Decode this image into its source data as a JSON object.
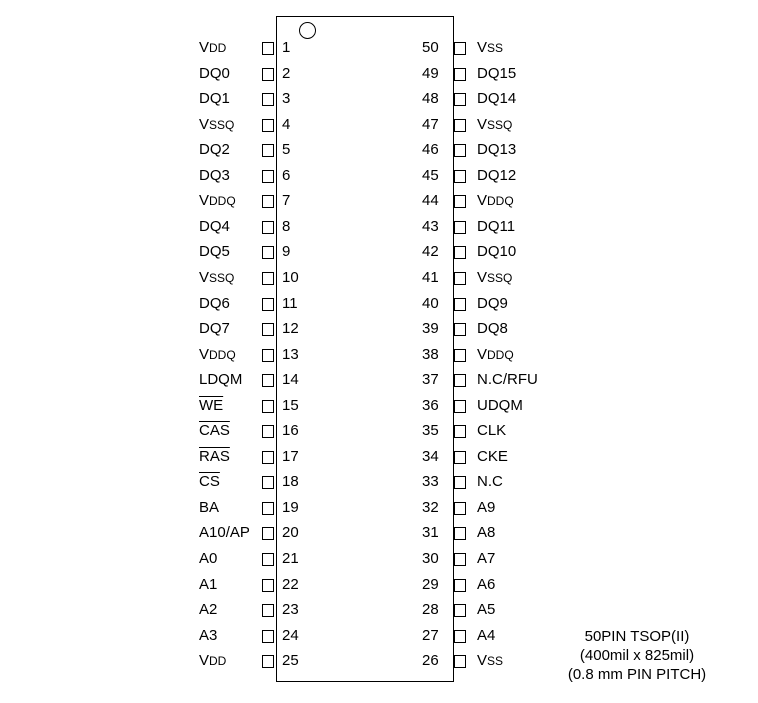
{
  "pins_left": [
    {
      "num": "1",
      "name": [
        {
          "t": "V"
        },
        {
          "t": "DD",
          "sub": true
        }
      ]
    },
    {
      "num": "2",
      "name": [
        {
          "t": "DQ0"
        }
      ]
    },
    {
      "num": "3",
      "name": [
        {
          "t": "DQ1"
        }
      ]
    },
    {
      "num": "4",
      "name": [
        {
          "t": "V"
        },
        {
          "t": "SSQ",
          "sub": true
        }
      ]
    },
    {
      "num": "5",
      "name": [
        {
          "t": "DQ2"
        }
      ]
    },
    {
      "num": "6",
      "name": [
        {
          "t": "DQ3"
        }
      ]
    },
    {
      "num": "7",
      "name": [
        {
          "t": "V"
        },
        {
          "t": "DDQ",
          "sub": true
        }
      ]
    },
    {
      "num": "8",
      "name": [
        {
          "t": "DQ4"
        }
      ]
    },
    {
      "num": "9",
      "name": [
        {
          "t": "DQ5"
        }
      ]
    },
    {
      "num": "10",
      "name": [
        {
          "t": "V"
        },
        {
          "t": "SSQ",
          "sub": true
        }
      ]
    },
    {
      "num": "11",
      "name": [
        {
          "t": "DQ6"
        }
      ]
    },
    {
      "num": "12",
      "name": [
        {
          "t": "DQ7"
        }
      ]
    },
    {
      "num": "13",
      "name": [
        {
          "t": "V"
        },
        {
          "t": "DDQ",
          "sub": true
        }
      ]
    },
    {
      "num": "14",
      "name": [
        {
          "t": "LDQM"
        }
      ]
    },
    {
      "num": "15",
      "name": [
        {
          "t": "WE",
          "bar": true
        }
      ]
    },
    {
      "num": "16",
      "name": [
        {
          "t": "CAS",
          "bar": true
        }
      ]
    },
    {
      "num": "17",
      "name": [
        {
          "t": "RAS",
          "bar": true
        }
      ]
    },
    {
      "num": "18",
      "name": [
        {
          "t": "CS",
          "bar": true
        }
      ]
    },
    {
      "num": "19",
      "name": [
        {
          "t": "BA"
        }
      ]
    },
    {
      "num": "20",
      "name": [
        {
          "t": "A10/AP"
        }
      ]
    },
    {
      "num": "21",
      "name": [
        {
          "t": "A0"
        }
      ]
    },
    {
      "num": "22",
      "name": [
        {
          "t": "A1"
        }
      ]
    },
    {
      "num": "23",
      "name": [
        {
          "t": "A2"
        }
      ]
    },
    {
      "num": "24",
      "name": [
        {
          "t": "A3"
        }
      ]
    },
    {
      "num": "25",
      "name": [
        {
          "t": "V"
        },
        {
          "t": "DD",
          "sub": true
        }
      ]
    }
  ],
  "pins_right": [
    {
      "num": "50",
      "name": [
        {
          "t": "V"
        },
        {
          "t": "SS",
          "sub": true
        }
      ]
    },
    {
      "num": "49",
      "name": [
        {
          "t": "DQ15"
        }
      ]
    },
    {
      "num": "48",
      "name": [
        {
          "t": "DQ14"
        }
      ]
    },
    {
      "num": "47",
      "name": [
        {
          "t": "V"
        },
        {
          "t": "SSQ",
          "sub": true
        }
      ]
    },
    {
      "num": "46",
      "name": [
        {
          "t": "DQ13"
        }
      ]
    },
    {
      "num": "45",
      "name": [
        {
          "t": "DQ12"
        }
      ]
    },
    {
      "num": "44",
      "name": [
        {
          "t": "V"
        },
        {
          "t": "DDQ",
          "sub": true
        }
      ]
    },
    {
      "num": "43",
      "name": [
        {
          "t": "DQ11"
        }
      ]
    },
    {
      "num": "42",
      "name": [
        {
          "t": "DQ10"
        }
      ]
    },
    {
      "num": "41",
      "name": [
        {
          "t": "V"
        },
        {
          "t": "SSQ",
          "sub": true
        }
      ]
    },
    {
      "num": "40",
      "name": [
        {
          "t": "DQ9"
        }
      ]
    },
    {
      "num": "39",
      "name": [
        {
          "t": "DQ8"
        }
      ]
    },
    {
      "num": "38",
      "name": [
        {
          "t": "V"
        },
        {
          "t": "DDQ",
          "sub": true
        }
      ]
    },
    {
      "num": "37",
      "name": [
        {
          "t": "N.C/RFU"
        }
      ]
    },
    {
      "num": "36",
      "name": [
        {
          "t": "UDQM"
        }
      ]
    },
    {
      "num": "35",
      "name": [
        {
          "t": "CLK"
        }
      ]
    },
    {
      "num": "34",
      "name": [
        {
          "t": "CKE"
        }
      ]
    },
    {
      "num": "33",
      "name": [
        {
          "t": "N.C"
        }
      ]
    },
    {
      "num": "32",
      "name": [
        {
          "t": "A9"
        }
      ]
    },
    {
      "num": "31",
      "name": [
        {
          "t": "A8"
        }
      ]
    },
    {
      "num": "30",
      "name": [
        {
          "t": "A7"
        }
      ]
    },
    {
      "num": "29",
      "name": [
        {
          "t": "A6"
        }
      ]
    },
    {
      "num": "28",
      "name": [
        {
          "t": "A5"
        }
      ]
    },
    {
      "num": "27",
      "name": [
        {
          "t": "A4"
        }
      ]
    },
    {
      "num": "26",
      "name": [
        {
          "t": "V"
        },
        {
          "t": "SS",
          "sub": true
        }
      ]
    }
  ],
  "package_info": {
    "line1": "50PIN TSOP(II)",
    "line2": "(400mil x 825mil)",
    "line3": "(0.8 mm PIN PITCH)"
  }
}
